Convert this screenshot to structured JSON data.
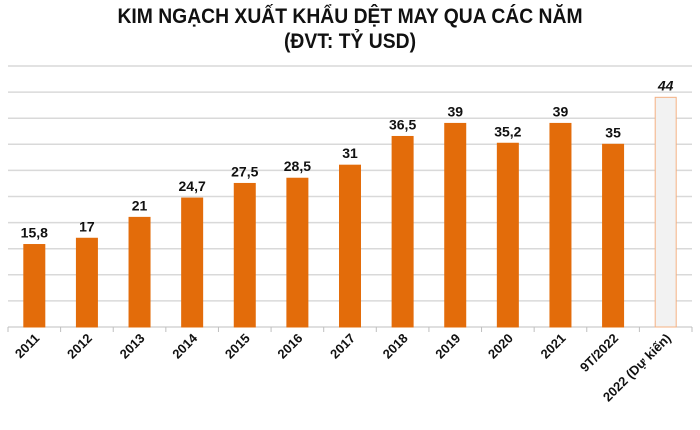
{
  "chart_data": {
    "type": "bar",
    "title": "KIM NGẠCH XUẤT KHẨU DỆT MAY QUA CÁC NĂM",
    "subtitle": "(ĐVT: TỶ USD)",
    "categories": [
      "2011",
      "2012",
      "2013",
      "2014",
      "2015",
      "2016",
      "2017",
      "2018",
      "2019",
      "2020",
      "2021",
      "9T/2022",
      "2022 (Dự kiến)"
    ],
    "values": [
      15.8,
      17,
      21,
      24.7,
      27.5,
      28.5,
      31,
      36.5,
      39,
      35.2,
      39,
      35,
      44
    ],
    "value_labels": [
      "15,8",
      "17",
      "21",
      "24,7",
      "27,5",
      "28,5",
      "31",
      "36,5",
      "39",
      "35,2",
      "39",
      "35",
      "44"
    ],
    "forecast_index": 12,
    "xlabel": "",
    "ylabel": "",
    "ylim": [
      0,
      50
    ],
    "ytick_step": 5,
    "grid": true,
    "colors": {
      "bar": "#e36c0a",
      "forecast_fill": "#f2f2f2",
      "forecast_stroke": "#f4b183",
      "grid": "#d9d9d9"
    }
  }
}
